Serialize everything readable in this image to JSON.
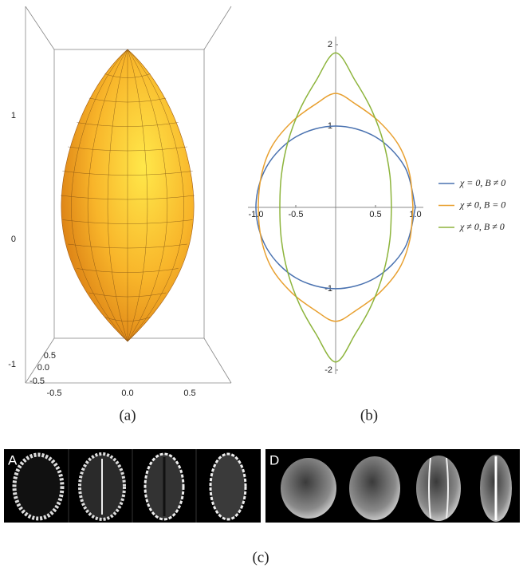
{
  "figure": {
    "panel_a": {
      "z_ticks": [
        "1",
        "0",
        "-1"
      ],
      "x_ticks": [
        "-0.5",
        "0.0",
        "0.5"
      ],
      "y_ticks": [
        "0.5",
        "0.0",
        "-0.5"
      ],
      "caption": "(a)"
    },
    "panel_b_caption": "(b)",
    "panel_c": {
      "labels": [
        "A",
        "D"
      ],
      "caption": "(c)"
    }
  },
  "chart_data": {
    "type": "line",
    "xlim": [
      -1.1,
      1.1
    ],
    "ylim": [
      -2.05,
      2.1
    ],
    "xticks": [
      {
        "value": -1,
        "label": "-1.0"
      },
      -0.5,
      0.5,
      {
        "value": 1,
        "label": "1.0"
      }
    ],
    "yticks": [
      -2,
      -1,
      1,
      2
    ],
    "series": [
      {
        "name": "χ = 0, B ≠ 0",
        "color": "#4a72b0",
        "x": [
          1,
          0.866,
          0.5,
          0,
          -0.5,
          -0.866,
          -1,
          -0.866,
          -0.5,
          0,
          0.5,
          0.866,
          1
        ],
        "values": [
          0,
          0.5,
          0.866,
          1,
          0.866,
          0.5,
          0,
          -0.5,
          -0.866,
          -1,
          -0.866,
          -0.5,
          0
        ]
      },
      {
        "name": "χ ≠ 0, B = 0",
        "color": "#e8a030",
        "x": [
          0.97,
          0.93,
          0.8,
          0.55,
          0.25,
          0,
          -0.25,
          -0.55,
          -0.8,
          -0.93,
          -0.97,
          -0.93,
          -0.8,
          -0.55,
          -0.25,
          0,
          0.25,
          0.55,
          0.8,
          0.93,
          0.97
        ],
        "values": [
          0,
          0.4,
          0.75,
          1.05,
          1.27,
          1.4,
          1.27,
          1.05,
          0.75,
          0.4,
          0,
          -0.4,
          -0.75,
          -1.05,
          -1.27,
          -1.4,
          -1.27,
          -1.05,
          -0.75,
          -0.4,
          0
        ]
      },
      {
        "name": "χ ≠ 0, B ≠ 0",
        "color": "#8db43c",
        "x": [
          0.7,
          0.68,
          0.6,
          0.45,
          0.25,
          0,
          -0.25,
          -0.45,
          -0.6,
          -0.68,
          -0.7,
          -0.68,
          -0.6,
          -0.45,
          -0.25,
          0,
          0.25,
          0.45,
          0.6,
          0.68,
          0.7
        ],
        "values": [
          0,
          0.4,
          0.8,
          1.2,
          1.55,
          1.9,
          1.55,
          1.2,
          0.8,
          0.4,
          0,
          -0.4,
          -0.8,
          -1.2,
          -1.55,
          -1.9,
          -1.55,
          -1.2,
          -0.8,
          -0.4,
          0
        ]
      }
    ]
  }
}
